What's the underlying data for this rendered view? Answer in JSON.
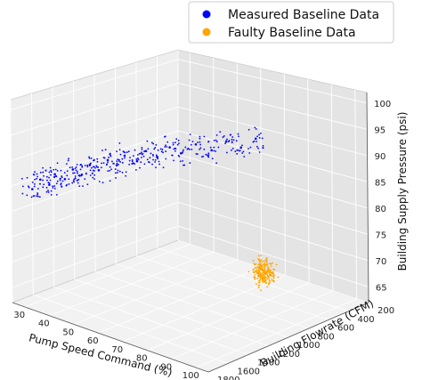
{
  "chart_data": {
    "type": "scatter",
    "projection": "3d",
    "grid": true,
    "legend_placement": "top-right",
    "title": "",
    "xlabel": "Pump Speed Command (%)",
    "ylabel": "Building Flowrate (CFM)",
    "zlabel": "Building Supply Pressure (psi)",
    "xlim": [
      25,
      105
    ],
    "ylim": [
      200,
      1800
    ],
    "zlim": [
      62,
      102
    ],
    "x_ticks": [
      "30",
      "40",
      "50",
      "60",
      "70",
      "80",
      "90",
      "100"
    ],
    "y_ticks": [
      "200",
      "400",
      "600",
      "800",
      "1000",
      "1200",
      "1400",
      "1600",
      "1800"
    ],
    "z_ticks": [
      "65",
      "70",
      "75",
      "80",
      "85",
      "90",
      "95",
      "100"
    ],
    "series": [
      {
        "name": "Measured Baseline Data",
        "color": "#0000ff",
        "points": [
          {
            "x": 31,
            "y": 1750,
            "z": 85
          },
          {
            "x": 33,
            "y": 1720,
            "z": 87
          },
          {
            "x": 35,
            "y": 1680,
            "z": 86
          },
          {
            "x": 36,
            "y": 1650,
            "z": 88
          },
          {
            "x": 38,
            "y": 1600,
            "z": 87
          },
          {
            "x": 40,
            "y": 1570,
            "z": 89
          },
          {
            "x": 42,
            "y": 1530,
            "z": 88
          },
          {
            "x": 44,
            "y": 1500,
            "z": 90
          },
          {
            "x": 46,
            "y": 1460,
            "z": 89
          },
          {
            "x": 48,
            "y": 1420,
            "z": 91
          },
          {
            "x": 50,
            "y": 1380,
            "z": 90
          },
          {
            "x": 52,
            "y": 1350,
            "z": 92
          },
          {
            "x": 55,
            "y": 1300,
            "z": 91
          },
          {
            "x": 57,
            "y": 1260,
            "z": 93
          },
          {
            "x": 60,
            "y": 1220,
            "z": 92
          },
          {
            "x": 63,
            "y": 1170,
            "z": 94
          },
          {
            "x": 66,
            "y": 1130,
            "z": 93
          },
          {
            "x": 70,
            "y": 1080,
            "z": 95
          },
          {
            "x": 74,
            "y": 1020,
            "z": 94
          },
          {
            "x": 78,
            "y": 970,
            "z": 96
          },
          {
            "x": 82,
            "y": 920,
            "z": 95
          },
          {
            "x": 86,
            "y": 870,
            "z": 97
          }
        ]
      },
      {
        "name": "Faulty Baseline Data",
        "color": "#ffa500",
        "points": [
          {
            "x": 72,
            "y": 500,
            "z": 66
          },
          {
            "x": 74,
            "y": 540,
            "z": 67
          },
          {
            "x": 76,
            "y": 580,
            "z": 66
          },
          {
            "x": 78,
            "y": 620,
            "z": 68
          },
          {
            "x": 80,
            "y": 660,
            "z": 67
          },
          {
            "x": 82,
            "y": 700,
            "z": 69
          },
          {
            "x": 84,
            "y": 740,
            "z": 68
          },
          {
            "x": 86,
            "y": 780,
            "z": 70
          },
          {
            "x": 88,
            "y": 820,
            "z": 69
          },
          {
            "x": 90,
            "y": 860,
            "z": 71
          },
          {
            "x": 92,
            "y": 900,
            "z": 72
          },
          {
            "x": 94,
            "y": 940,
            "z": 73
          }
        ]
      }
    ]
  }
}
